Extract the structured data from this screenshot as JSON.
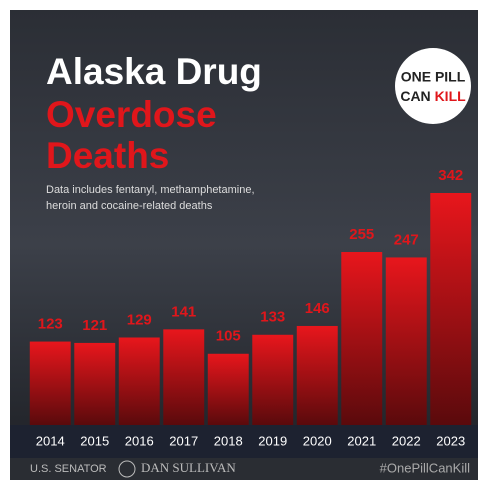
{
  "chart_data": {
    "type": "bar",
    "title_lines": [
      "Alaska Drug",
      "Overdose",
      "Deaths"
    ],
    "subtitle_lines": [
      "Data includes fentanyl, methamphetamine,",
      "heroin and cocaine-related deaths"
    ],
    "badge_lines": [
      "ONE PILL",
      "CAN",
      "KILL"
    ],
    "categories": [
      "2014",
      "2015",
      "2016",
      "2017",
      "2018",
      "2019",
      "2020",
      "2021",
      "2022",
      "2023"
    ],
    "values": [
      123,
      121,
      129,
      141,
      105,
      133,
      146,
      255,
      247,
      342
    ],
    "color": "#e0161b",
    "footer_left": [
      "U.S. SENATOR",
      "DAN SULLIVAN"
    ],
    "footer_right": "#OnePillCanKill"
  }
}
